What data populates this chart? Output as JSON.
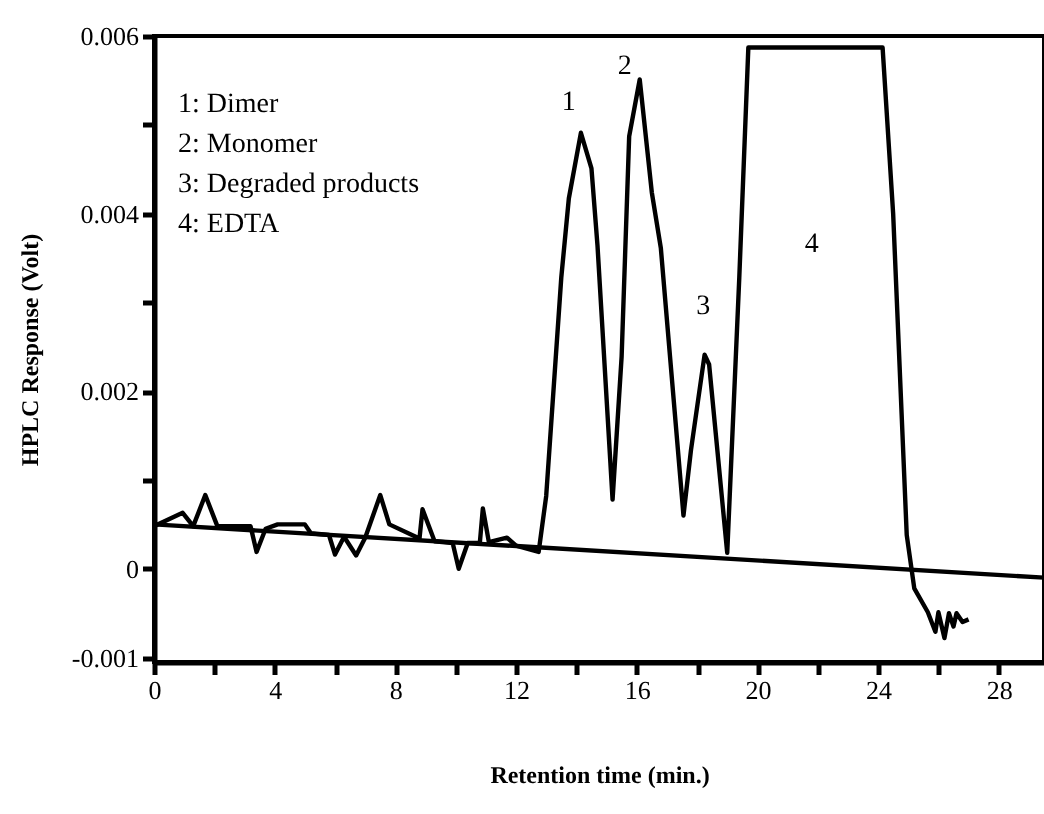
{
  "chart_data": {
    "type": "line",
    "xlabel": "Retention time (min.)",
    "ylabel": "HPLC Response (Volt)",
    "xlim": [
      0,
      29.5
    ],
    "ylim": [
      -0.00105,
      0.006
    ],
    "xticks": [
      0,
      {
        "value": 2,
        "label": null
      },
      4,
      {
        "value": 6,
        "label": null
      },
      8,
      {
        "value": 10,
        "label": null
      },
      12,
      {
        "value": 14,
        "label": null
      },
      16,
      {
        "value": 18,
        "label": null
      },
      20,
      {
        "value": 22,
        "label": null
      },
      24,
      {
        "value": 26,
        "label": null
      },
      28
    ],
    "yticks": [
      -0.001,
      0,
      {
        "value": 0.001,
        "label": null
      },
      0.002,
      {
        "value": 0.003,
        "label": null
      },
      0.004,
      {
        "value": 0.005,
        "label": null
      },
      0.006
    ],
    "annotations": [
      "1: Dimer",
      "2: Monomer",
      "3: Degraded products",
      "4: EDTA",
      "1",
      "2",
      "3",
      "4"
    ],
    "series": [
      {
        "color": "#000000",
        "x": [
          0,
          0.95,
          1.3,
          1.7,
          2.1,
          3.2,
          3.4,
          3.7,
          4.1,
          5.0,
          5.2,
          5.8,
          6.0,
          6.3,
          6.7,
          7.0,
          7.5,
          7.8,
          8.8,
          8.9,
          9.3,
          9.9,
          10.1,
          10.4,
          10.8,
          10.9,
          11.1,
          11.7,
          12.0,
          12.75,
          13.0,
          13.5,
          13.75,
          14.15,
          14.5,
          14.7,
          15.2,
          15.5,
          15.75,
          16.1,
          16.5,
          16.8,
          17.55,
          17.8,
          18.25,
          18.4,
          19.0,
          19.4,
          19.7,
          24.15,
          24.5,
          24.95,
          25.2,
          25.65,
          25.9,
          26.0,
          26.2,
          26.35,
          26.5,
          26.6,
          26.8,
          27.0
        ],
        "values": [
          0.00048,
          0.00063,
          0.00048,
          0.00083,
          0.00048,
          0.00048,
          0.00019,
          0.00045,
          0.0005,
          0.0005,
          0.0004,
          0.00038,
          0.00016,
          0.00036,
          0.00015,
          0.00035,
          0.00083,
          0.0005,
          0.00034,
          0.00067,
          0.00031,
          0.00029,
          0.0,
          0.00029,
          0.00029,
          0.00068,
          0.0003,
          0.00035,
          0.00026,
          0.00019,
          0.00082,
          0.00328,
          0.00417,
          0.00491,
          0.00451,
          0.00364,
          0.00078,
          0.00239,
          0.00487,
          0.00551,
          0.00424,
          0.00361,
          0.0006,
          0.00134,
          0.00241,
          0.0023,
          0.00018,
          0.00328,
          0.00587,
          0.00587,
          0.004,
          0.00038,
          -0.00022,
          -0.00049,
          -0.00071,
          -0.00049,
          -0.00078,
          -0.0005,
          -0.00065,
          -0.0005,
          -0.0006,
          -0.00057
        ]
      },
      {
        "color": "#000000",
        "x": [
          0,
          29.5
        ],
        "values": [
          0.0005,
          -0.0001
        ]
      }
    ]
  }
}
